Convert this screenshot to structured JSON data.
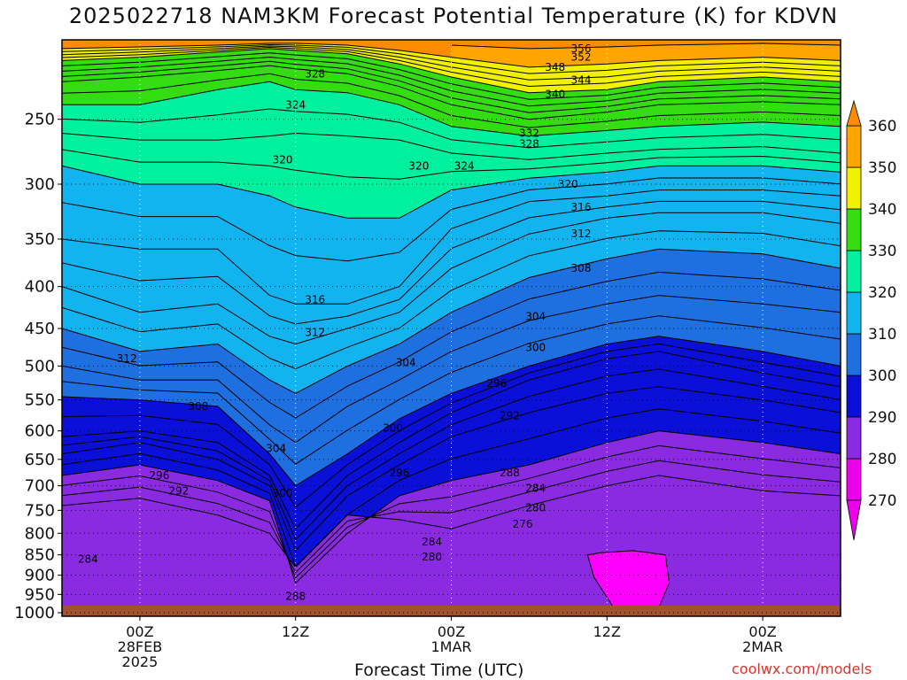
{
  "title": "2025022718 NAM3KM Forecast Potential Temperature (K) for KDVN",
  "xlabel": "Forecast Time (UTC)",
  "credit": "coolwx.com/models",
  "colors": {
    "ground": "#a0522d",
    "bands": [
      {
        "lo": 270,
        "hi": 280,
        "color": "#ee00ee"
      },
      {
        "lo": 280,
        "hi": 290,
        "color": "#8a2be2"
      },
      {
        "lo": 290,
        "hi": 300,
        "color": "#0b10d8"
      },
      {
        "lo": 300,
        "hi": 310,
        "color": "#1e6fe0"
      },
      {
        "lo": 310,
        "hi": 320,
        "color": "#11b4ee"
      },
      {
        "lo": 320,
        "hi": 330,
        "color": "#00f0a0"
      },
      {
        "lo": 330,
        "hi": 340,
        "color": "#33dd11"
      },
      {
        "lo": 340,
        "hi": 350,
        "color": "#f0f000"
      },
      {
        "lo": 350,
        "hi": 360,
        "color": "#ffa500"
      }
    ],
    "below_min": "#ee00ee",
    "above_max": "#ff8c00"
  },
  "chart_data": {
    "type": "contour",
    "variable": "Potential Temperature (K)",
    "x_axis": {
      "ticks": [
        {
          "hour": 6,
          "lines": [
            "00Z",
            "28FEB",
            "2025"
          ]
        },
        {
          "hour": 18,
          "lines": [
            "12Z"
          ]
        },
        {
          "hour": 30,
          "lines": [
            "00Z",
            "1MAR"
          ]
        },
        {
          "hour": 42,
          "lines": [
            "12Z"
          ]
        },
        {
          "hour": 54,
          "lines": [
            "00Z",
            "2MAR"
          ]
        }
      ],
      "range_hours": [
        0,
        60
      ]
    },
    "y_axis": {
      "scale": "log-pressure",
      "ticks": [
        250,
        300,
        350,
        400,
        450,
        500,
        550,
        600,
        650,
        700,
        750,
        800,
        850,
        900,
        950,
        1000
      ],
      "range_hpa": [
        200,
        1010
      ],
      "reversed": true
    },
    "colorbar": {
      "levels": [
        270,
        280,
        290,
        300,
        310,
        320,
        330,
        340,
        350,
        360
      ]
    },
    "contour_interval": 2,
    "isentropes": [
      {
        "theta": 282,
        "points": [
          [
            0,
            740
          ],
          [
            6,
            725
          ],
          [
            12,
            760
          ],
          [
            16,
            800
          ],
          [
            18,
            880
          ],
          [
            22,
            760
          ],
          [
            26,
            770
          ],
          [
            30,
            790
          ],
          [
            36,
            740
          ],
          [
            42,
            700
          ],
          [
            46,
            680
          ],
          [
            54,
            710
          ],
          [
            60,
            720
          ]
        ]
      },
      {
        "theta": 288,
        "points": [
          [
            0,
            680
          ],
          [
            6,
            660
          ],
          [
            12,
            690
          ],
          [
            16,
            730
          ],
          [
            18,
            920
          ],
          [
            22,
            800
          ],
          [
            26,
            720
          ],
          [
            30,
            690
          ],
          [
            36,
            660
          ],
          [
            42,
            620
          ],
          [
            46,
            600
          ],
          [
            54,
            620
          ],
          [
            60,
            640
          ]
        ]
      },
      {
        "theta": 292,
        "points": [
          [
            0,
            640
          ],
          [
            6,
            620
          ],
          [
            12,
            650
          ],
          [
            16,
            700
          ],
          [
            18,
            840
          ],
          [
            22,
            720
          ],
          [
            26,
            660
          ],
          [
            30,
            610
          ],
          [
            36,
            570
          ],
          [
            42,
            540
          ],
          [
            46,
            530
          ],
          [
            54,
            550
          ],
          [
            60,
            570
          ]
        ]
      },
      {
        "theta": 296,
        "points": [
          [
            0,
            610
          ],
          [
            6,
            600
          ],
          [
            12,
            620
          ],
          [
            16,
            680
          ],
          [
            18,
            790
          ],
          [
            22,
            680
          ],
          [
            26,
            620
          ],
          [
            30,
            570
          ],
          [
            36,
            520
          ],
          [
            42,
            490
          ],
          [
            46,
            480
          ],
          [
            54,
            510
          ],
          [
            60,
            530
          ]
        ]
      },
      {
        "theta": 300,
        "points": [
          [
            0,
            545
          ],
          [
            6,
            550
          ],
          [
            12,
            560
          ],
          [
            16,
            640
          ],
          [
            18,
            700
          ],
          [
            22,
            640
          ],
          [
            26,
            580
          ],
          [
            30,
            540
          ],
          [
            36,
            500
          ],
          [
            42,
            470
          ],
          [
            46,
            460
          ],
          [
            54,
            480
          ],
          [
            60,
            500
          ]
        ]
      },
      {
        "theta": 304,
        "points": [
          [
            0,
            500
          ],
          [
            6,
            520
          ],
          [
            12,
            520
          ],
          [
            16,
            590
          ],
          [
            18,
            620
          ],
          [
            22,
            560
          ],
          [
            26,
            520
          ],
          [
            30,
            480
          ],
          [
            36,
            440
          ],
          [
            42,
            420
          ],
          [
            46,
            410
          ],
          [
            54,
            420
          ],
          [
            60,
            430
          ]
        ]
      },
      {
        "theta": 308,
        "points": [
          [
            0,
            450
          ],
          [
            6,
            480
          ],
          [
            12,
            470
          ],
          [
            16,
            520
          ],
          [
            18,
            540
          ],
          [
            22,
            500
          ],
          [
            26,
            470
          ],
          [
            30,
            430
          ],
          [
            36,
            390
          ],
          [
            42,
            370
          ],
          [
            46,
            360
          ],
          [
            54,
            365
          ],
          [
            60,
            380
          ]
        ]
      },
      {
        "theta": 312,
        "points": [
          [
            0,
            400
          ],
          [
            6,
            430
          ],
          [
            12,
            420
          ],
          [
            16,
            460
          ],
          [
            18,
            470
          ],
          [
            22,
            450
          ],
          [
            26,
            430
          ],
          [
            30,
            380
          ],
          [
            36,
            345
          ],
          [
            42,
            330
          ],
          [
            46,
            325
          ],
          [
            54,
            325
          ],
          [
            60,
            335
          ]
        ]
      },
      {
        "theta": 316,
        "points": [
          [
            0,
            350
          ],
          [
            6,
            360
          ],
          [
            12,
            360
          ],
          [
            16,
            410
          ],
          [
            18,
            420
          ],
          [
            22,
            420
          ],
          [
            26,
            400
          ],
          [
            30,
            340
          ],
          [
            36,
            315
          ],
          [
            42,
            310
          ],
          [
            46,
            305
          ],
          [
            54,
            305
          ],
          [
            60,
            310
          ]
        ]
      },
      {
        "theta": 320,
        "points": [
          [
            0,
            285
          ],
          [
            6,
            300
          ],
          [
            12,
            300
          ],
          [
            16,
            310
          ],
          [
            18,
            320
          ],
          [
            22,
            330
          ],
          [
            26,
            330
          ],
          [
            30,
            305
          ],
          [
            36,
            295
          ],
          [
            42,
            290
          ],
          [
            46,
            285
          ],
          [
            54,
            285
          ],
          [
            60,
            290
          ]
        ]
      },
      {
        "theta": 324,
        "points": [
          [
            0,
            260
          ],
          [
            6,
            265
          ],
          [
            12,
            265
          ],
          [
            16,
            262
          ],
          [
            18,
            260
          ],
          [
            22,
            262
          ],
          [
            26,
            265
          ],
          [
            30,
            275
          ],
          [
            36,
            280
          ],
          [
            42,
            275
          ],
          [
            46,
            272
          ],
          [
            54,
            270
          ],
          [
            60,
            275
          ]
        ]
      },
      {
        "theta": 328,
        "points": [
          [
            0,
            240
          ],
          [
            6,
            240
          ],
          [
            12,
            230
          ],
          [
            16,
            225
          ],
          [
            18,
            230
          ],
          [
            22,
            232
          ],
          [
            26,
            240
          ],
          [
            30,
            255
          ],
          [
            36,
            262
          ],
          [
            42,
            258
          ],
          [
            46,
            255
          ],
          [
            54,
            252
          ],
          [
            60,
            255
          ]
        ]
      },
      {
        "theta": 332,
        "points": [
          [
            0,
            225
          ],
          [
            6,
            222
          ],
          [
            12,
            218
          ],
          [
            16,
            215
          ],
          [
            18,
            217
          ],
          [
            22,
            220
          ],
          [
            26,
            228
          ],
          [
            30,
            240
          ],
          [
            36,
            250
          ],
          [
            42,
            245
          ],
          [
            46,
            240
          ],
          [
            54,
            238
          ],
          [
            60,
            240
          ]
        ]
      },
      {
        "theta": 340,
        "points": [
          [
            0,
            212
          ],
          [
            6,
            210
          ],
          [
            12,
            207
          ],
          [
            16,
            205
          ],
          [
            18,
            206
          ],
          [
            22,
            208
          ],
          [
            26,
            214
          ],
          [
            30,
            222
          ],
          [
            36,
            232
          ],
          [
            42,
            230
          ],
          [
            46,
            225
          ],
          [
            54,
            222
          ],
          [
            60,
            225
          ]
        ]
      },
      {
        "theta": 348,
        "points": [
          [
            0,
            205
          ],
          [
            6,
            204
          ],
          [
            12,
            203
          ],
          [
            16,
            202
          ],
          [
            18,
            202
          ],
          [
            22,
            203
          ],
          [
            26,
            206
          ],
          [
            30,
            210
          ],
          [
            36,
            216
          ],
          [
            42,
            214
          ],
          [
            46,
            212
          ],
          [
            54,
            210
          ],
          [
            60,
            212
          ]
        ]
      },
      {
        "theta": 356,
        "points": [
          [
            30,
            203
          ],
          [
            36,
            205
          ],
          [
            42,
            204
          ],
          [
            46,
            203
          ],
          [
            54,
            202
          ],
          [
            60,
            203
          ]
        ]
      }
    ],
    "contour_labels": [
      {
        "text": "356",
        "hour": 40,
        "hpa": 205
      },
      {
        "text": "352",
        "hour": 40,
        "hpa": 210
      },
      {
        "text": "348",
        "hour": 38,
        "hpa": 216
      },
      {
        "text": "344",
        "hour": 40,
        "hpa": 224
      },
      {
        "text": "340",
        "hour": 38,
        "hpa": 233
      },
      {
        "text": "332",
        "hour": 36,
        "hpa": 260
      },
      {
        "text": "328",
        "hour": 36,
        "hpa": 268
      },
      {
        "text": "328",
        "hour": 19.5,
        "hpa": 220
      },
      {
        "text": "324",
        "hour": 18,
        "hpa": 240
      },
      {
        "text": "324",
        "hour": 31,
        "hpa": 285
      },
      {
        "text": "320",
        "hour": 39,
        "hpa": 300
      },
      {
        "text": "320",
        "hour": 17,
        "hpa": 280
      },
      {
        "text": "320",
        "hour": 27.5,
        "hpa": 285
      },
      {
        "text": "316",
        "hour": 40,
        "hpa": 320
      },
      {
        "text": "312",
        "hour": 40,
        "hpa": 345
      },
      {
        "text": "308",
        "hour": 40,
        "hpa": 380
      },
      {
        "text": "316",
        "hour": 19.5,
        "hpa": 415
      },
      {
        "text": "312",
        "hour": 19.5,
        "hpa": 455
      },
      {
        "text": "304",
        "hour": 36.5,
        "hpa": 435
      },
      {
        "text": "312",
        "hour": 5,
        "hpa": 490
      },
      {
        "text": "300",
        "hour": 36.5,
        "hpa": 475
      },
      {
        "text": "304",
        "hour": 26.5,
        "hpa": 495
      },
      {
        "text": "296",
        "hour": 33.5,
        "hpa": 525
      },
      {
        "text": "308",
        "hour": 10.5,
        "hpa": 560
      },
      {
        "text": "292",
        "hour": 34.5,
        "hpa": 575
      },
      {
        "text": "300",
        "hour": 25.5,
        "hpa": 595
      },
      {
        "text": "304",
        "hour": 16.5,
        "hpa": 630
      },
      {
        "text": "288",
        "hour": 34.5,
        "hpa": 675
      },
      {
        "text": "296",
        "hour": 26,
        "hpa": 675
      },
      {
        "text": "296",
        "hour": 7.5,
        "hpa": 680
      },
      {
        "text": "284",
        "hour": 36.5,
        "hpa": 705
      },
      {
        "text": "292",
        "hour": 9,
        "hpa": 710
      },
      {
        "text": "300",
        "hour": 17,
        "hpa": 715
      },
      {
        "text": "280",
        "hour": 36.5,
        "hpa": 745
      },
      {
        "text": "276",
        "hour": 35.5,
        "hpa": 780
      },
      {
        "text": "284",
        "hour": 28.5,
        "hpa": 820
      },
      {
        "text": "280",
        "hour": 28.5,
        "hpa": 855
      },
      {
        "text": "284",
        "hour": 2,
        "hpa": 860
      },
      {
        "text": "288",
        "hour": 18,
        "hpa": 955
      }
    ],
    "cold_pool_270": [
      [
        40.5,
        850
      ],
      [
        41,
        905
      ],
      [
        42.5,
        985
      ],
      [
        46,
        985
      ],
      [
        46.8,
        920
      ],
      [
        46.5,
        850
      ],
      [
        44,
        840
      ],
      [
        41.5,
        845
      ]
    ],
    "ground_top_hpa": 980
  }
}
